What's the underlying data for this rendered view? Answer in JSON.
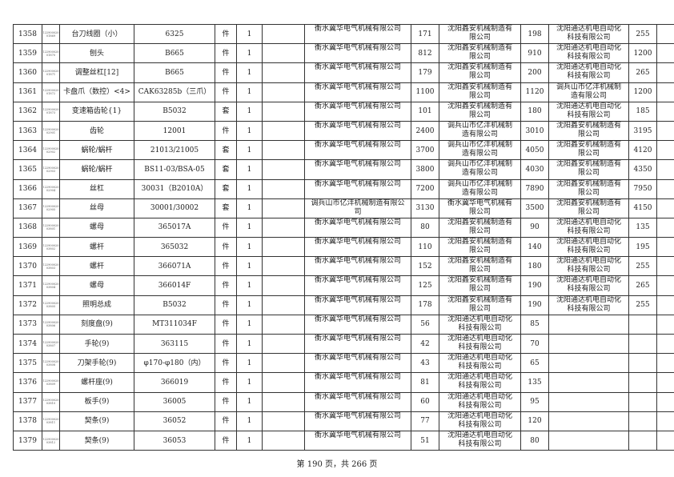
{
  "rows": [
    {
      "no": "1358",
      "code": "122900020 01869",
      "name": "台刀线圈（小）",
      "model": "6325",
      "unit": "件",
      "qty": "1",
      "s1": "衡水冀华电气机械有限公司",
      "p1": "171",
      "s2": "沈阳鑫安机械制造有限公司",
      "p2": "198",
      "s3": "沈阳通达机电自动化科技有限公司",
      "p3": "255"
    },
    {
      "no": "1359",
      "code": "122900020 01870",
      "name": "刨头",
      "model": "B665",
      "unit": "件",
      "qty": "1",
      "s1": "衡水冀华电气机械有限公司",
      "p1": "812",
      "s2": "沈阳鑫安机械制造有限公司",
      "p2": "910",
      "s3": "沈阳通达机电自动化科技有限公司",
      "p3": "1200"
    },
    {
      "no": "1360",
      "code": "122900020 01871",
      "name": "调整丝杠[12]",
      "model": "B665",
      "unit": "件",
      "qty": "1",
      "s1": "衡水冀华电气机械有限公司",
      "p1": "179",
      "s2": "沈阳鑫安机械制造有限公司",
      "p2": "200",
      "s3": "沈阳通达机电自动化科技有限公司",
      "p3": "265"
    },
    {
      "no": "1361",
      "code": "122900020 01872",
      "name": "卡盘爪（数控）<4>",
      "model": "CAK63285b（三爪）",
      "unit": "件",
      "qty": "1",
      "s1": "衡水冀华电气机械有限公司",
      "p1": "1100",
      "s2": "沈阳鑫安机械制造有限公司",
      "p2": "1120",
      "s3": "调兵山市亿沣机械制造有限公司",
      "p3": "1200"
    },
    {
      "no": "1362",
      "code": "122900020 01873",
      "name": "变速箱齿轮{1}",
      "model": "B5032",
      "unit": "套",
      "qty": "1",
      "s1": "衡水冀华电气机械有限公司",
      "p1": "101",
      "s2": "沈阳鑫安机械制造有限公司",
      "p2": "180",
      "s3": "沈阳通达机电自动化科技有限公司",
      "p3": "185"
    },
    {
      "no": "1363",
      "code": "122900020 02901",
      "name": "齿轮",
      "model": "12001",
      "unit": "件",
      "qty": "1",
      "s1": "衡水冀华电气机械有限公司",
      "p1": "2400",
      "s2": "调兵山市亿沣机械制造有限公司",
      "p2": "3010",
      "s3": "沈阳鑫安机械制造有限公司",
      "p3": "3195"
    },
    {
      "no": "1364",
      "code": "122900020 02902",
      "name": "蜗轮/蜗杆",
      "model": "21013/21005",
      "unit": "套",
      "qty": "1",
      "s1": "衡水冀华电气机械有限公司",
      "p1": "3700",
      "s2": "调兵山市亿沣机械制造有限公司",
      "p2": "4050",
      "s3": "沈阳鑫安机械制造有限公司",
      "p3": "4120"
    },
    {
      "no": "1365",
      "code": "122900020 02903",
      "name": "蜗轮/蜗杆",
      "model": "BS11-03/BSA-05",
      "unit": "套",
      "qty": "1",
      "s1": "衡水冀华电气机械有限公司",
      "p1": "3800",
      "s2": "调兵山市亿沣机械制造有限公司",
      "p2": "4030",
      "s3": "沈阳鑫安机械制造有限公司",
      "p3": "4350"
    },
    {
      "no": "1366",
      "code": "122900020 02904",
      "name": "丝杠",
      "model": "30031（B2010A）",
      "unit": "套",
      "qty": "1",
      "s1": "衡水冀华电气机械有限公司",
      "p1": "7200",
      "s2": "调兵山市亿沣机械制造有限公司",
      "p2": "7890",
      "s3": "沈阳鑫安机械制造有限公司",
      "p3": "7950"
    },
    {
      "no": "1367",
      "code": "122900020 02905",
      "name": "丝母",
      "model": "30001/30002",
      "unit": "套",
      "qty": "1",
      "s1": "调兵山市亿沣机械制造有限公司",
      "p1": "3130",
      "s2": "衡水冀华电气机械有限公司",
      "p2": "3500",
      "s3": "沈阳鑫安机械制造有限公司",
      "p3": "4150"
    },
    {
      "no": "1368",
      "code": "122900020 03801",
      "name": "螺母",
      "model": "365017A",
      "unit": "件",
      "qty": "1",
      "s1": "衡水冀华电气机械有限公司",
      "p1": "80",
      "s2": "沈阳鑫安机械制造有限公司",
      "p2": "90",
      "s3": "沈阳通达机电自动化科技有限公司",
      "p3": "135"
    },
    {
      "no": "1369",
      "code": "122900020 03802",
      "name": "螺杆",
      "model": "365032",
      "unit": "件",
      "qty": "1",
      "s1": "衡水冀华电气机械有限公司",
      "p1": "110",
      "s2": "沈阳鑫安机械制造有限公司",
      "p2": "140",
      "s3": "沈阳通达机电自动化科技有限公司",
      "p3": "195"
    },
    {
      "no": "1370",
      "code": "122900020 03803",
      "name": "螺杆",
      "model": "366071A",
      "unit": "件",
      "qty": "1",
      "s1": "衡水冀华电气机械有限公司",
      "p1": "152",
      "s2": "沈阳鑫安机械制造有限公司",
      "p2": "180",
      "s3": "沈阳通达机电自动化科技有限公司",
      "p3": "255"
    },
    {
      "no": "1371",
      "code": "122900020 03804",
      "name": "螺母",
      "model": "366014F",
      "unit": "件",
      "qty": "1",
      "s1": "衡水冀华电气机械有限公司",
      "p1": "125",
      "s2": "沈阳鑫安机械制造有限公司",
      "p2": "190",
      "s3": "沈阳通达机电自动化科技有限公司",
      "p3": "265"
    },
    {
      "no": "1372",
      "code": "122900020 03805",
      "name": "照明总成",
      "model": "B5032",
      "unit": "件",
      "qty": "1",
      "s1": "衡水冀华电气机械有限公司",
      "p1": "178",
      "s2": "沈阳鑫安机械制造有限公司",
      "p2": "190",
      "s3": "沈阳通达机电自动化科技有限公司",
      "p3": "255"
    },
    {
      "no": "1373",
      "code": "122900020 03806",
      "name": "刻度盘(9)",
      "model": "MT311034F",
      "unit": "件",
      "qty": "1",
      "s1": "衡水冀华电气机械有限公司",
      "p1": "56",
      "s2": "沈阳通达机电自动化科技有限公司",
      "p2": "85",
      "s3": "",
      "p3": ""
    },
    {
      "no": "1374",
      "code": "122900020 03807",
      "name": "手轮(9)",
      "model": "363115",
      "unit": "件",
      "qty": "1",
      "s1": "衡水冀华电气机械有限公司",
      "p1": "42",
      "s2": "沈阳通达机电自动化科技有限公司",
      "p2": "70",
      "s3": "",
      "p3": ""
    },
    {
      "no": "1375",
      "code": "122900020 03808",
      "name": "刀架手轮(9)",
      "model": "φ170-φ180（内）",
      "unit": "件",
      "qty": "1",
      "s1": "衡水冀华电气机械有限公司",
      "p1": "43",
      "s2": "沈阳通达机电自动化科技有限公司",
      "p2": "65",
      "s3": "",
      "p3": ""
    },
    {
      "no": "1376",
      "code": "122900020 03809",
      "name": "螺杆座(9)",
      "model": "366019",
      "unit": "件",
      "qty": "1",
      "s1": "衡水冀华电气机械有限公司",
      "p1": "81",
      "s2": "沈阳通达机电自动化科技有限公司",
      "p2": "135",
      "s3": "",
      "p3": ""
    },
    {
      "no": "1377",
      "code": "122900020 03810",
      "name": "板手(9)",
      "model": "36005",
      "unit": "件",
      "qty": "1",
      "s1": "衡水冀华电气机械有限公司",
      "p1": "60",
      "s2": "沈阳通达机电自动化科技有限公司",
      "p2": "95",
      "s3": "",
      "p3": ""
    },
    {
      "no": "1378",
      "code": "122900020 03811",
      "name": "契条(9)",
      "model": "36052",
      "unit": "件",
      "qty": "1",
      "s1": "衡水冀华电气机械有限公司",
      "p1": "77",
      "s2": "沈阳通达机电自动化科技有限公司",
      "p2": "120",
      "s3": "",
      "p3": ""
    },
    {
      "no": "1379",
      "code": "122900020 03812",
      "name": "契条(9)",
      "model": "36053",
      "unit": "件",
      "qty": "1",
      "s1": "衡水冀华电气机械有限公司",
      "p1": "51",
      "s2": "沈阳通达机电自动化科技有限公司",
      "p2": "80",
      "s3": "",
      "p3": ""
    }
  ],
  "footer": "第 190 页，共 266 页"
}
